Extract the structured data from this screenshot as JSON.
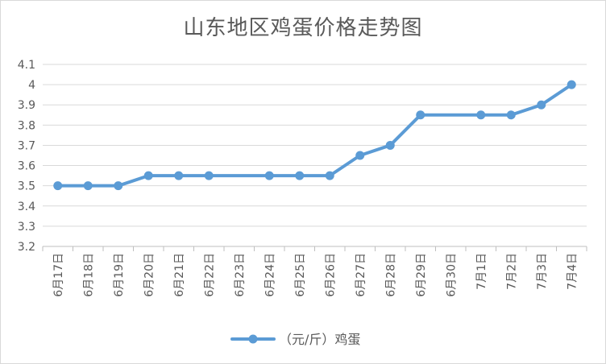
{
  "chart_data": {
    "type": "line",
    "title": "山东地区鸡蛋价格走势图",
    "xlabel": "",
    "ylabel": "",
    "categories": [
      "6月17日",
      "6月18日",
      "6月19日",
      "6月20日",
      "6月21日",
      "6月22日",
      "6月23日",
      "6月24日",
      "6月25日",
      "6月26日",
      "6月27日",
      "6月28日",
      "6月29日",
      "6月30日",
      "7月1日",
      "7月2日",
      "7月3日",
      "7月4日"
    ],
    "series": [
      {
        "name": "（元/斤）鸡蛋",
        "values": [
          3.5,
          3.5,
          3.5,
          3.55,
          3.55,
          3.55,
          null,
          3.55,
          3.55,
          3.55,
          3.65,
          3.7,
          3.85,
          null,
          3.85,
          3.85,
          3.9,
          4.0
        ],
        "color": "#5b9bd5"
      }
    ],
    "ylim": [
      3.2,
      4.1
    ],
    "yticks": [
      3.2,
      3.3,
      3.4,
      3.5,
      3.6,
      3.7,
      3.8,
      3.9,
      4,
      4.1
    ],
    "ytick_labels": [
      "3.2",
      "3.3",
      "3.4",
      "3.5",
      "3.6",
      "3.7",
      "3.8",
      "3.9",
      "4",
      "4.1"
    ],
    "grid": true,
    "legend": "bottom"
  },
  "colors": {
    "gridline": "#d9d9d9",
    "axis": "#bfbfbf",
    "text": "#595959"
  }
}
